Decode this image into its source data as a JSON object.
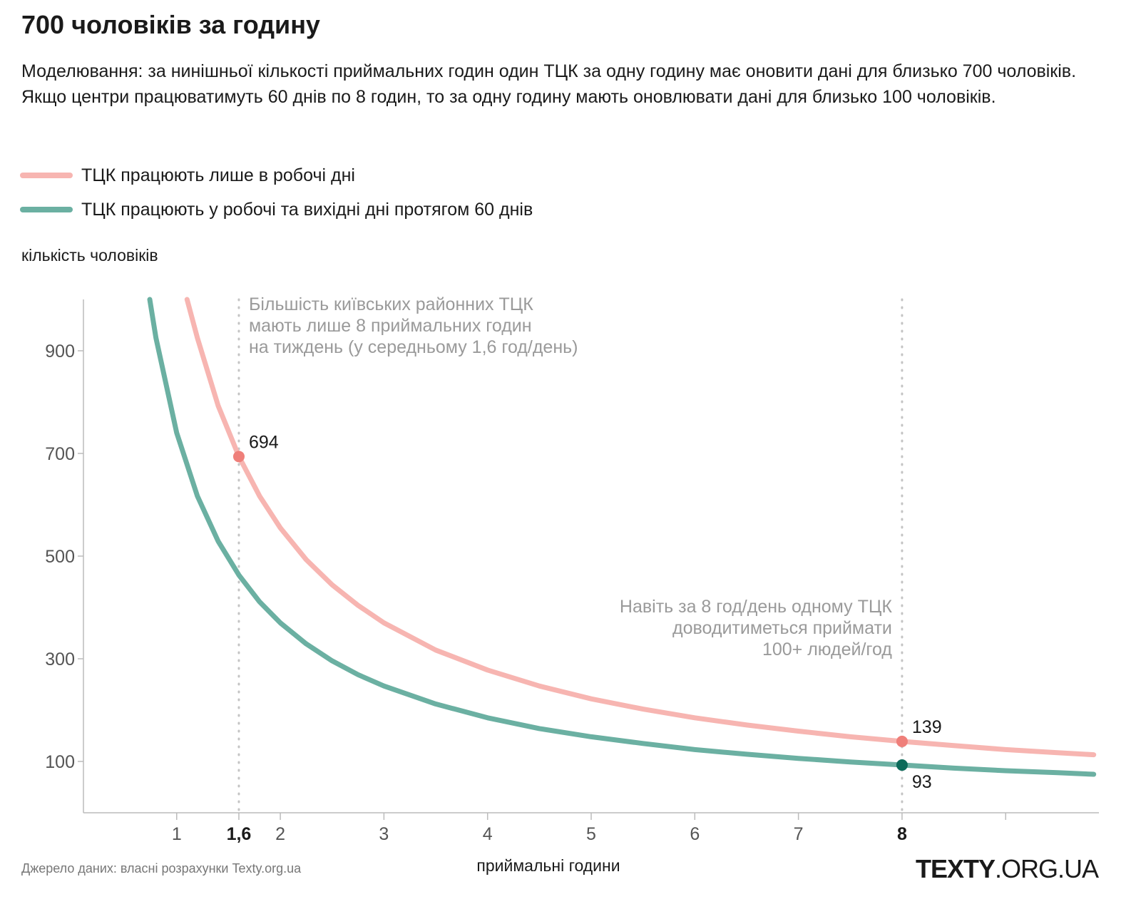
{
  "title": "700 чоловіків за годину",
  "subtitle": "Моделювання: за нинішньої кількості приймальних годин один ТЦК за одну годину має оновити дані для близько 700 чоловіків. Якщо центри працюватимуть 60 днів по 8 годин, то за одну годину мають оновлювати дані для близько 100 чоловіків.",
  "source": "Джерело даних: власні розрахунки Texty.org.ua",
  "logo": {
    "bold": "TEXTY",
    "rest": ".ORG.UA"
  },
  "colors": {
    "pink": "#f7b5b1",
    "pink_point": "#ef7f7a",
    "green": "#6bb0a2",
    "green_point": "#0c6b5a",
    "axis": "#bbbbbb",
    "grid": "#c4c4c4",
    "annotation": "#9a9a9a"
  },
  "chart_data": {
    "type": "line",
    "xlabel": "приймальні години",
    "ylabel": "кількість чоловіків",
    "xlim": [
      0.1,
      9.9
    ],
    "ylim": [
      0,
      1000
    ],
    "xticks": [
      {
        "value": 1,
        "label": "1",
        "bold": false
      },
      {
        "value": 1.6,
        "label": "1,6",
        "bold": true
      },
      {
        "value": 2,
        "label": "2",
        "bold": false
      },
      {
        "value": 3,
        "label": "3",
        "bold": false
      },
      {
        "value": 4,
        "label": "4",
        "bold": false
      },
      {
        "value": 5,
        "label": "5",
        "bold": false
      },
      {
        "value": 6,
        "label": "6",
        "bold": false
      },
      {
        "value": 7,
        "label": "7",
        "bold": false
      },
      {
        "value": 8,
        "label": "8",
        "bold": true
      },
      {
        "value": 9,
        "label": "",
        "bold": false
      }
    ],
    "yticks": [
      {
        "value": 100,
        "label": "100"
      },
      {
        "value": 300,
        "label": "300"
      },
      {
        "value": 500,
        "label": "500"
      },
      {
        "value": 700,
        "label": "700"
      },
      {
        "value": 900,
        "label": "900"
      }
    ],
    "series": [
      {
        "name": "ТЦК працюють лише в робочі дні",
        "color": "#f7b5b1",
        "x": [
          1.1,
          1.2,
          1.4,
          1.6,
          1.8,
          2.0,
          2.25,
          2.5,
          2.75,
          3.0,
          3.5,
          4.0,
          4.5,
          5.0,
          5.5,
          6.0,
          6.5,
          7.0,
          7.5,
          8.0,
          8.5,
          9.0,
          9.5,
          9.85
        ],
        "y": [
          1000,
          925,
          793,
          694,
          617,
          555,
          493,
          444,
          404,
          370,
          317,
          278,
          247,
          222,
          202,
          185,
          171,
          159,
          148,
          139,
          131,
          123,
          117,
          113
        ]
      },
      {
        "name": "ТЦК працюють у робочі та вихідні дні протягом 60 днів",
        "color": "#6bb0a2",
        "x": [
          0.74,
          0.8,
          1.0,
          1.2,
          1.4,
          1.6,
          1.8,
          2.0,
          2.25,
          2.5,
          2.75,
          3.0,
          3.5,
          4.0,
          4.5,
          5.0,
          5.5,
          6.0,
          6.5,
          7.0,
          7.5,
          8.0,
          8.5,
          9.0,
          9.5,
          9.85
        ],
        "y": [
          1000,
          925,
          740,
          617,
          529,
          463,
          411,
          370,
          329,
          296,
          269,
          247,
          212,
          185,
          164,
          148,
          135,
          123,
          114,
          106,
          99,
          93,
          87,
          82,
          78,
          75
        ]
      }
    ],
    "points": [
      {
        "x": 1.6,
        "y": 694,
        "label": "694",
        "series": 0,
        "label_pos": "above-right"
      },
      {
        "x": 8,
        "y": 139,
        "label": "139",
        "series": 0,
        "label_pos": "above-right"
      },
      {
        "x": 8,
        "y": 93,
        "label": "93",
        "series": 1,
        "label_pos": "below-right"
      }
    ],
    "vlines": [
      1.6,
      8
    ],
    "annotations": [
      {
        "x": 1.6,
        "anchor": "start",
        "lines": [
          "Більшість київських районних ТЦК",
          "мають лише 8 приймальних годин",
          "на тиждень (у середньому 1,6 год/день)"
        ]
      },
      {
        "x": 8,
        "anchor": "end",
        "lines": [
          "Навіть за 8 год/день одному ТЦК",
          "доводитиметься приймати",
          "100+ людей/год"
        ]
      }
    ]
  }
}
